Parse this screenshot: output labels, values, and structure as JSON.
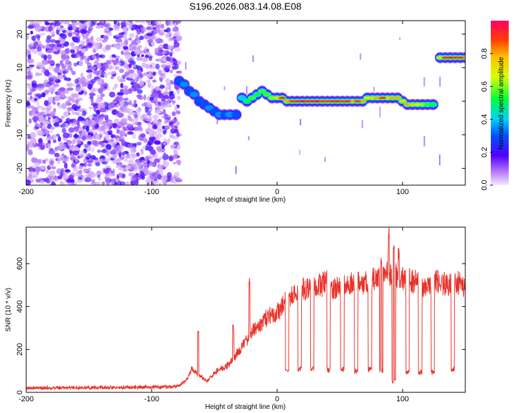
{
  "title": "S196.2026.083.14.08.E08",
  "colorbar": {
    "label": "Normalized spectral amplitude",
    "ticks": [
      "0.0",
      "0.2",
      "0.4",
      "0.6",
      "0.8"
    ],
    "tick_values": [
      0.0,
      0.2,
      0.4,
      0.6,
      0.8
    ],
    "range": [
      0,
      1
    ]
  },
  "chart_data": [
    {
      "type": "heatmap",
      "name": "spectrogram",
      "xlabel": "Height of straight line (km)",
      "ylabel": "Frequency (Hz)",
      "xlim": [
        -200,
        150
      ],
      "ylim": [
        -25,
        24
      ],
      "xticks": [
        -200,
        -100,
        0,
        100
      ],
      "xtick_labels": [
        "-200",
        "-100",
        "0",
        "100"
      ],
      "yticks": [
        -20,
        -10,
        0,
        10,
        20
      ],
      "ytick_labels": [
        "-20",
        "-10",
        "0",
        "10",
        "20"
      ],
      "noise_region_x": [
        -200,
        -78
      ],
      "ridge": [
        {
          "x": -80,
          "y": 6,
          "a": 0.3
        },
        {
          "x": -76,
          "y": 5,
          "a": 0.35
        },
        {
          "x": -72,
          "y": 3,
          "a": 0.3
        },
        {
          "x": -68,
          "y": 2,
          "a": 0.35
        },
        {
          "x": -64,
          "y": 0,
          "a": 0.3
        },
        {
          "x": -60,
          "y": -1,
          "a": 0.3
        },
        {
          "x": -56,
          "y": -2,
          "a": 0.35
        },
        {
          "x": -52,
          "y": -3,
          "a": 0.3
        },
        {
          "x": -48,
          "y": -4,
          "a": 0.35
        },
        {
          "x": -44,
          "y": -4,
          "a": 0.3
        },
        {
          "x": -40,
          "y": -4,
          "a": 0.35
        },
        {
          "x": -35,
          "y": -4,
          "a": 0.3
        },
        {
          "x": -30,
          "y": 1,
          "a": 0.4
        },
        {
          "x": -26,
          "y": 0,
          "a": 0.5
        },
        {
          "x": -22,
          "y": 1,
          "a": 0.55
        },
        {
          "x": -18,
          "y": 2,
          "a": 0.5
        },
        {
          "x": -14,
          "y": 3,
          "a": 0.55
        },
        {
          "x": -10,
          "y": 2,
          "a": 0.55
        },
        {
          "x": -6,
          "y": 1,
          "a": 0.6
        },
        {
          "x": -2,
          "y": 1,
          "a": 0.75
        },
        {
          "x": 2,
          "y": 1,
          "a": 0.85
        },
        {
          "x": 6,
          "y": 0,
          "a": 0.8
        },
        {
          "x": 10,
          "y": 0,
          "a": 0.85
        },
        {
          "x": 14,
          "y": 0,
          "a": 0.9
        },
        {
          "x": 18,
          "y": 0,
          "a": 0.95
        },
        {
          "x": 22,
          "y": 0,
          "a": 0.9
        },
        {
          "x": 26,
          "y": 0,
          "a": 0.9
        },
        {
          "x": 30,
          "y": 0,
          "a": 0.95
        },
        {
          "x": 34,
          "y": 0,
          "a": 0.85
        },
        {
          "x": 38,
          "y": 0,
          "a": 0.85
        },
        {
          "x": 42,
          "y": 0,
          "a": 0.9
        },
        {
          "x": 46,
          "y": 0,
          "a": 0.9
        },
        {
          "x": 50,
          "y": 0,
          "a": 0.85
        },
        {
          "x": 54,
          "y": 0,
          "a": 0.9
        },
        {
          "x": 58,
          "y": 0,
          "a": 0.8
        },
        {
          "x": 62,
          "y": 0,
          "a": 0.85
        },
        {
          "x": 66,
          "y": 0,
          "a": 0.8
        },
        {
          "x": 70,
          "y": 1,
          "a": 0.7
        },
        {
          "x": 74,
          "y": 1,
          "a": 0.75
        },
        {
          "x": 78,
          "y": 1,
          "a": 0.8
        },
        {
          "x": 82,
          "y": 1,
          "a": 0.85
        },
        {
          "x": 86,
          "y": 1,
          "a": 0.75
        },
        {
          "x": 90,
          "y": 1,
          "a": 0.8
        },
        {
          "x": 94,
          "y": 1,
          "a": 0.8
        },
        {
          "x": 98,
          "y": 0,
          "a": 0.75
        },
        {
          "x": 102,
          "y": -1,
          "a": 0.8
        },
        {
          "x": 106,
          "y": -1,
          "a": 0.75
        },
        {
          "x": 110,
          "y": -1,
          "a": 0.65
        },
        {
          "x": 114,
          "y": -1,
          "a": 0.6
        },
        {
          "x": 118,
          "y": -1,
          "a": 0.55
        },
        {
          "x": 122,
          "y": -1,
          "a": 0.5
        },
        {
          "x": 128,
          "y": 13,
          "a": 0.75
        },
        {
          "x": 132,
          "y": 13,
          "a": 0.85
        },
        {
          "x": 136,
          "y": 13,
          "a": 0.9
        },
        {
          "x": 140,
          "y": 13,
          "a": 0.85
        },
        {
          "x": 144,
          "y": 13,
          "a": 0.85
        },
        {
          "x": 148,
          "y": 13,
          "a": 0.8
        }
      ]
    },
    {
      "type": "line",
      "name": "snr",
      "xlabel": "Height of straight line (km)",
      "ylabel": "SNR (10 * v/v)",
      "xlim": [
        -200,
        150
      ],
      "ylim": [
        0,
        770
      ],
      "xticks": [
        -200,
        -100,
        0,
        100
      ],
      "xtick_labels": [
        "-200",
        "-100",
        "0",
        "100"
      ],
      "yticks": [
        0,
        200,
        400,
        600
      ],
      "ytick_labels": [
        "0",
        "200",
        "400",
        "600"
      ],
      "color": "#e8332b",
      "envelope": {
        "x": [
          -200,
          -150,
          -100,
          -85,
          -78,
          -72,
          -68,
          -62,
          -56,
          -50,
          -44,
          -38,
          -32,
          -26,
          -20,
          -14,
          -8,
          -2,
          4,
          10,
          16,
          22,
          28,
          34,
          40,
          46,
          52,
          58,
          64,
          70,
          76,
          82,
          88,
          94,
          100,
          106,
          112,
          118,
          124,
          130,
          136,
          142,
          150
        ],
        "y": [
          20,
          22,
          24,
          25,
          30,
          60,
          110,
          80,
          50,
          90,
          110,
          130,
          180,
          230,
          280,
          310,
          350,
          360,
          400,
          440,
          470,
          480,
          490,
          500,
          510,
          480,
          500,
          510,
          520,
          510,
          530,
          540,
          560,
          550,
          530,
          520,
          510,
          500,
          500,
          520,
          500,
          520,
          490
        ]
      },
      "dips": [
        {
          "x": 8,
          "y": 90
        },
        {
          "x": 18,
          "y": 95
        },
        {
          "x": 28,
          "y": 100
        },
        {
          "x": 41,
          "y": 90
        },
        {
          "x": 52,
          "y": 95
        },
        {
          "x": 63,
          "y": 85
        },
        {
          "x": 74,
          "y": 95
        },
        {
          "x": 83,
          "y": 90
        },
        {
          "x": 93,
          "y": 40
        },
        {
          "x": 104,
          "y": 85
        },
        {
          "x": 114,
          "y": 80
        },
        {
          "x": 124,
          "y": 80
        },
        {
          "x": 140,
          "y": 95
        }
      ],
      "peaks": [
        {
          "x": -63,
          "y": 290
        },
        {
          "x": -35,
          "y": 320
        },
        {
          "x": -22,
          "y": 555
        },
        {
          "x": 15,
          "y": 470
        },
        {
          "x": 83,
          "y": 650
        },
        {
          "x": 89,
          "y": 770
        },
        {
          "x": 93,
          "y": 720
        },
        {
          "x": 97,
          "y": 680
        }
      ]
    }
  ]
}
